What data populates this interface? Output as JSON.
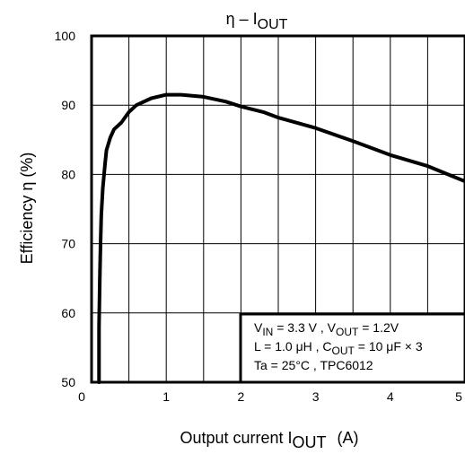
{
  "chart_data": {
    "type": "line",
    "title": {
      "main": "η – I",
      "sub": "OUT"
    },
    "xlabel": {
      "main": "Output current   I",
      "sub": "OUT",
      "unit": "(A)"
    },
    "ylabel": "Efficiency    η     (%)",
    "xlim": [
      0,
      5
    ],
    "ylim": [
      50,
      100
    ],
    "xticks": [
      "0",
      "1",
      "2",
      "3",
      "4",
      "5"
    ],
    "yticks": [
      "50",
      "60",
      "70",
      "80",
      "90",
      "100"
    ],
    "grid": true,
    "series": [
      {
        "color": "#000000",
        "x": [
          0.1,
          0.1,
          0.11,
          0.12,
          0.13,
          0.15,
          0.18,
          0.2,
          0.25,
          0.3,
          0.4,
          0.5,
          0.6,
          0.8,
          1.0,
          1.2,
          1.5,
          1.8,
          2.0,
          2.3,
          2.5,
          3.0,
          3.5,
          4.0,
          4.5,
          5.0
        ],
        "y": [
          50,
          58,
          65,
          70,
          74,
          78,
          81.5,
          83.5,
          85.3,
          86.5,
          87.5,
          89,
          90,
          91,
          91.5,
          91.5,
          91.2,
          90.5,
          89.8,
          89,
          88.2,
          86.7,
          84.8,
          82.8,
          81.2,
          79
        ]
      }
    ],
    "annotations": [
      {
        "parts": [
          [
            "V",
            ""
          ],
          [
            "IN",
            "sub"
          ],
          [
            " = 3.3 V , V",
            ""
          ],
          [
            "OUT",
            "sub"
          ],
          [
            " = 1.2V",
            ""
          ]
        ]
      },
      {
        "parts": [
          [
            "L = 1.0 μH , C",
            ""
          ],
          [
            "OUT",
            "sub"
          ],
          [
            " = 10 μF   × 3",
            ""
          ]
        ]
      },
      {
        "parts": [
          [
            "Ta = 25°C , TPC6012",
            ""
          ]
        ]
      }
    ]
  }
}
